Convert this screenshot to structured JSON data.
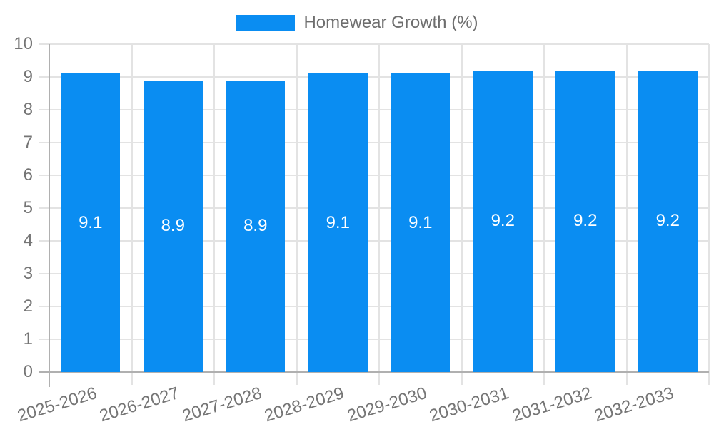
{
  "legend": {
    "items": [
      {
        "label": "Homewear Growth (%)",
        "swatch_color": "#0a8df2"
      }
    ],
    "position": "top"
  },
  "chart_data": {
    "type": "bar",
    "title": "Homewear Growth (%)",
    "categories": [
      "2025-2026",
      "2026-2027",
      "2027-2028",
      "2028-2029",
      "2029-2030",
      "2030-2031",
      "2031-2032",
      "2032-2033"
    ],
    "values": [
      9.1,
      8.9,
      8.9,
      9.1,
      9.1,
      9.2,
      9.2,
      9.2
    ],
    "value_labels": [
      "9.1",
      "8.9",
      "8.9",
      "9.1",
      "9.1",
      "9.2",
      "9.2",
      "9.2"
    ],
    "xlabel": "",
    "ylabel": "",
    "ylim": [
      0,
      10
    ],
    "yticks": [
      "0",
      "1",
      "2",
      "3",
      "4",
      "5",
      "6",
      "7",
      "8",
      "9",
      "10"
    ],
    "grid": true,
    "legend_position": "top",
    "bar_color": "#0a8df2",
    "value_label_color": "#ffffff",
    "axis_label_color": "#757575",
    "legend_text_color": "#6e6e6e",
    "grid_color": "#e3e3e3",
    "axis_line_color": "#b0b0b0",
    "background_color": "#ffffff"
  }
}
